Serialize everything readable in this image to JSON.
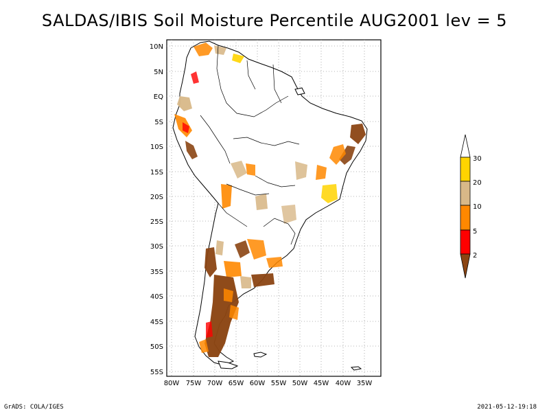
{
  "title": "SALDAS/IBIS Soil Moisture Percentile AUG2001 lev = 5",
  "footer": {
    "left": "GrADS: COLA/IGES",
    "right": "2021-05-12-19:18"
  },
  "axes": {
    "lon_labels": [
      "80W",
      "75W",
      "70W",
      "65W",
      "60W",
      "55W",
      "50W",
      "45W",
      "40W",
      "35W"
    ],
    "lat_labels": [
      "10N",
      "5N",
      "EQ",
      "5S",
      "10S",
      "15S",
      "20S",
      "25S",
      "30S",
      "35S",
      "40S",
      "45S",
      "50S",
      "55S"
    ]
  },
  "legend": {
    "labels": [
      "30",
      "20",
      "10",
      "5",
      "2"
    ],
    "colors": {
      "above": "#ffffff",
      "c20_30": "#ffd400",
      "c10_20": "#d8b888",
      "c5_10": "#ff8800",
      "c2_5": "#ff0000",
      "below2": "#8b4513"
    }
  }
}
